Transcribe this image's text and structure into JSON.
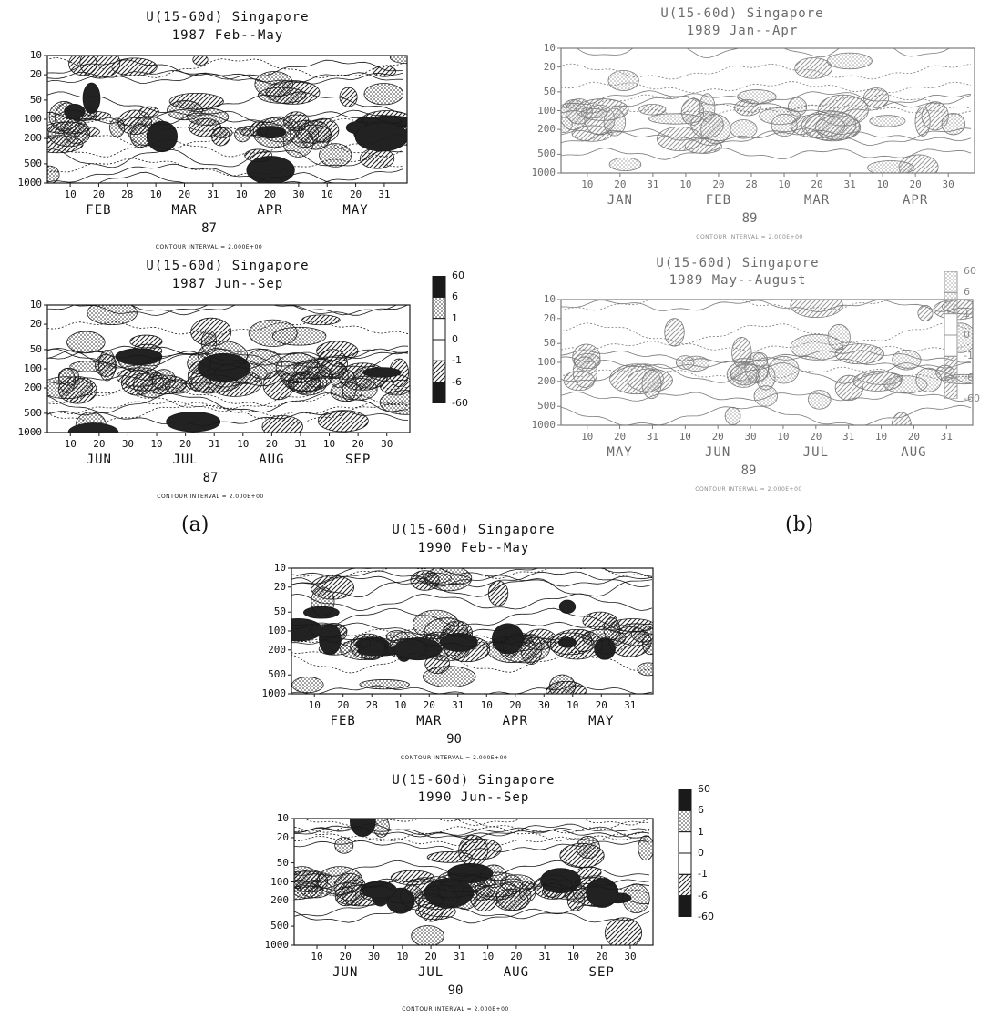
{
  "panel_labels": {
    "a": "(a)",
    "b": "(b)"
  },
  "legend_values": [
    "60",
    "6",
    "1",
    "0",
    "-1",
    "-6",
    "-60"
  ],
  "legend_fills": [
    "#1a1a1a",
    "dots",
    "#ffffff",
    "#ffffff",
    "hatch",
    "hatch-dense",
    "#1a1a1a"
  ],
  "chart_data": [
    {
      "type": "contour",
      "title": "U(15-60d) Singapore",
      "subtitle": "1987 Feb--May",
      "year_label": "87",
      "contour_interval": "CONTOUR INTERVAL = 2.000E+00",
      "yticks": [
        "10",
        "20",
        "50",
        "100",
        "200",
        "500",
        "1000"
      ],
      "xticks": [
        "10",
        "20",
        "28",
        "10",
        "20",
        "31",
        "10",
        "20",
        "30",
        "10",
        "20",
        "31"
      ],
      "months": [
        "FEB",
        "MAR",
        "APR",
        "MAY"
      ],
      "faint": false
    },
    {
      "type": "contour",
      "title": "U(15-60d) Singapore",
      "subtitle": "1987 Jun--Sep",
      "year_label": "87",
      "contour_interval": "CONTOUR INTERVAL = 2.000E+00",
      "yticks": [
        "10",
        "20",
        "50",
        "100",
        "200",
        "500",
        "1000"
      ],
      "xticks": [
        "10",
        "20",
        "30",
        "10",
        "20",
        "31",
        "10",
        "20",
        "31",
        "10",
        "20",
        "30"
      ],
      "months": [
        "JUN",
        "JUL",
        "AUG",
        "SEP"
      ],
      "faint": false
    },
    {
      "type": "contour",
      "title": "U(15-60d) Singapore",
      "subtitle": "1989 Jan--Apr",
      "year_label": "89",
      "contour_interval": "CONTOUR INTERVAL = 2.000E+00",
      "yticks": [
        "10",
        "20",
        "50",
        "100",
        "200",
        "500",
        "1000"
      ],
      "xticks": [
        "10",
        "20",
        "31",
        "10",
        "20",
        "28",
        "10",
        "20",
        "31",
        "10",
        "20",
        "30"
      ],
      "months": [
        "JAN",
        "FEB",
        "MAR",
        "APR"
      ],
      "faint": true
    },
    {
      "type": "contour",
      "title": "U(15-60d) Singapore",
      "subtitle": "1989 May--August",
      "year_label": "89",
      "contour_interval": "CONTOUR INTERVAL = 2.000E+00",
      "yticks": [
        "10",
        "20",
        "50",
        "100",
        "200",
        "500",
        "1000"
      ],
      "xticks": [
        "10",
        "20",
        "31",
        "10",
        "20",
        "30",
        "10",
        "20",
        "31",
        "10",
        "20",
        "31"
      ],
      "months": [
        "MAY",
        "JUN",
        "JUL",
        "AUG"
      ],
      "faint": true
    },
    {
      "type": "contour",
      "title": "U(15-60d) Singapore",
      "subtitle": "1990 Feb--May",
      "year_label": "90",
      "contour_interval": "CONTOUR INTERVAL = 2.000E+00",
      "yticks": [
        "10",
        "20",
        "50",
        "100",
        "200",
        "500",
        "1000"
      ],
      "xticks": [
        "10",
        "20",
        "28",
        "10",
        "20",
        "31",
        "10",
        "20",
        "30",
        "10",
        "20",
        "31"
      ],
      "months": [
        "FEB",
        "MAR",
        "APR",
        "MAY"
      ],
      "faint": false
    },
    {
      "type": "contour",
      "title": "U(15-60d) Singapore",
      "subtitle": "1990 Jun--Sep",
      "year_label": "90",
      "contour_interval": "CONTOUR INTERVAL = 2.000E+00",
      "yticks": [
        "10",
        "20",
        "50",
        "100",
        "200",
        "500",
        "1000"
      ],
      "xticks": [
        "10",
        "20",
        "30",
        "10",
        "20",
        "31",
        "10",
        "20",
        "31",
        "10",
        "20",
        "30"
      ],
      "months": [
        "JUN",
        "JUL",
        "AUG",
        "SEP"
      ],
      "faint": false
    }
  ]
}
